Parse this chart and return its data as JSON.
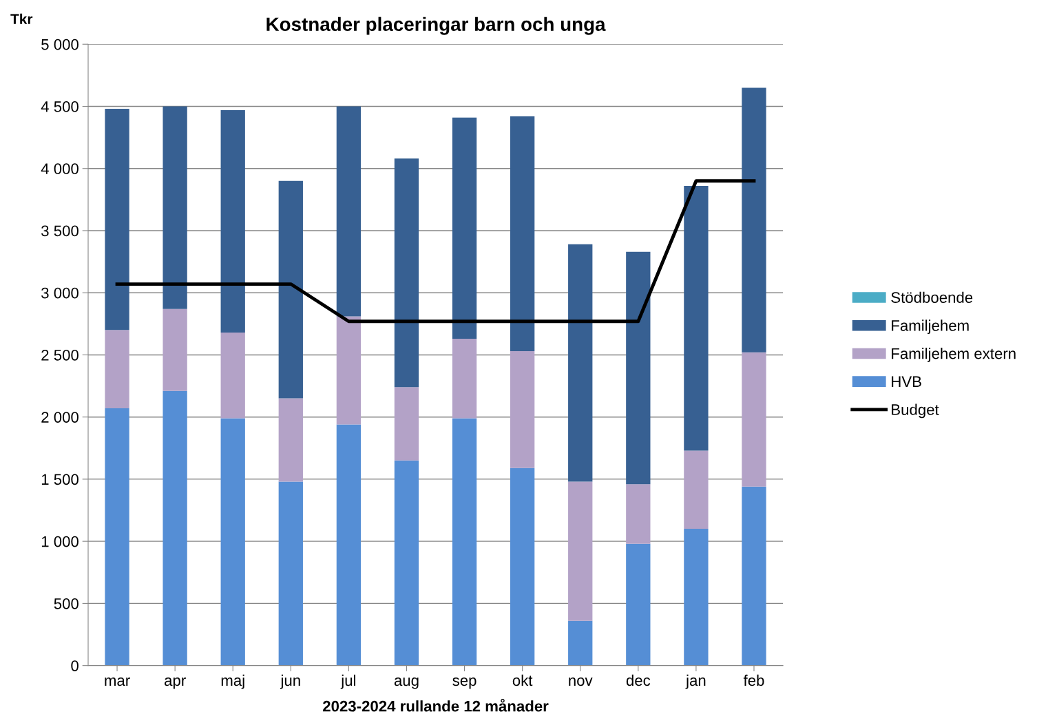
{
  "chart_data": {
    "type": "bar",
    "stacked": true,
    "title": "Kostnader placeringar barn och unga",
    "xlabel": "2023-2024 rullande 12 månader",
    "ylabel": "Tkr",
    "categories": [
      "mar",
      "apr",
      "maj",
      "jun",
      "jul",
      "aug",
      "sep",
      "okt",
      "nov",
      "dec",
      "jan",
      "feb"
    ],
    "series": [
      {
        "name": "HVB",
        "color": "#558ed5",
        "values": [
          2070,
          2210,
          1990,
          1480,
          1940,
          1650,
          1990,
          1590,
          360,
          980,
          1100,
          1440
        ]
      },
      {
        "name": "Familjehem extern",
        "color": "#b3a2c7",
        "values": [
          630,
          660,
          690,
          670,
          870,
          590,
          640,
          940,
          1120,
          480,
          630,
          1080
        ]
      },
      {
        "name": "Familjehem",
        "color": "#376092",
        "values": [
          1780,
          1630,
          1790,
          1750,
          1690,
          1840,
          1780,
          1890,
          1910,
          1870,
          2130,
          2130
        ]
      },
      {
        "name": "Stödboende",
        "color": "#4bacc6",
        "values": [
          0,
          0,
          0,
          0,
          0,
          0,
          0,
          0,
          0,
          0,
          0,
          0
        ]
      },
      {
        "name": "Budget",
        "type": "line",
        "color": "#000000",
        "values": [
          3070,
          3070,
          3070,
          3070,
          2770,
          2770,
          2770,
          2770,
          2770,
          2770,
          3900,
          3900
        ]
      }
    ],
    "ylim": [
      0,
      5000
    ],
    "yticks": [
      {
        "value": 0,
        "label": "0"
      },
      {
        "value": 500,
        "label": "500"
      },
      {
        "value": 1000,
        "label": "1 000"
      },
      {
        "value": 1500,
        "label": "1 500"
      },
      {
        "value": 2000,
        "label": "2 000"
      },
      {
        "value": 2500,
        "label": "2 500"
      },
      {
        "value": 3000,
        "label": "3 000"
      },
      {
        "value": 3500,
        "label": "3 500"
      },
      {
        "value": 4000,
        "label": "4 000"
      },
      {
        "value": 4500,
        "label": "4 500"
      },
      {
        "value": 5000,
        "label": "5 000"
      }
    ],
    "grid": "y",
    "legend": "right"
  }
}
